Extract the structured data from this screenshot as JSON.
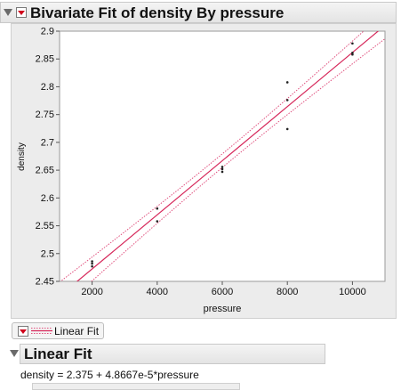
{
  "report": {
    "title": "Bivariate Fit of density By pressure"
  },
  "chart_data": {
    "type": "scatter",
    "xlabel": "pressure",
    "ylabel": "density",
    "xlim": [
      1000,
      11000
    ],
    "ylim": [
      2.45,
      2.9
    ],
    "x_ticks": [
      2000,
      4000,
      6000,
      8000,
      10000
    ],
    "y_ticks": [
      2.45,
      2.5,
      2.55,
      2.6,
      2.65,
      2.7,
      2.75,
      2.8,
      2.85,
      2.9
    ],
    "x_tick_labels": [
      "2000",
      "4000",
      "6000",
      "8000",
      "10000"
    ],
    "y_tick_labels": [
      "2.45",
      "2.5",
      "2.55",
      "2.6",
      "2.65",
      "2.7",
      "2.75",
      "2.8",
      "2.85",
      "2.9"
    ],
    "points": [
      {
        "x": 2000,
        "y": 2.486
      },
      {
        "x": 2000,
        "y": 2.482
      },
      {
        "x": 2000,
        "y": 2.477
      },
      {
        "x": 4000,
        "y": 2.581
      },
      {
        "x": 4000,
        "y": 2.558
      },
      {
        "x": 6000,
        "y": 2.656
      },
      {
        "x": 6000,
        "y": 2.652
      },
      {
        "x": 6000,
        "y": 2.647
      },
      {
        "x": 8000,
        "y": 2.808
      },
      {
        "x": 8000,
        "y": 2.776
      },
      {
        "x": 8000,
        "y": 2.724
      },
      {
        "x": 10000,
        "y": 2.878
      },
      {
        "x": 10000,
        "y": 2.861
      },
      {
        "x": 10000,
        "y": 2.858
      }
    ],
    "fit": {
      "intercept": 2.375,
      "slope": 4.8667e-05
    },
    "fit_color": "#d6275a",
    "confidence_color": "#e0507e",
    "point_color": "#222222"
  },
  "legend": {
    "label": "Linear Fit"
  },
  "linear_fit": {
    "title": "Linear Fit",
    "equation": "density = 2.375 + 4.8667e-5*pressure"
  }
}
